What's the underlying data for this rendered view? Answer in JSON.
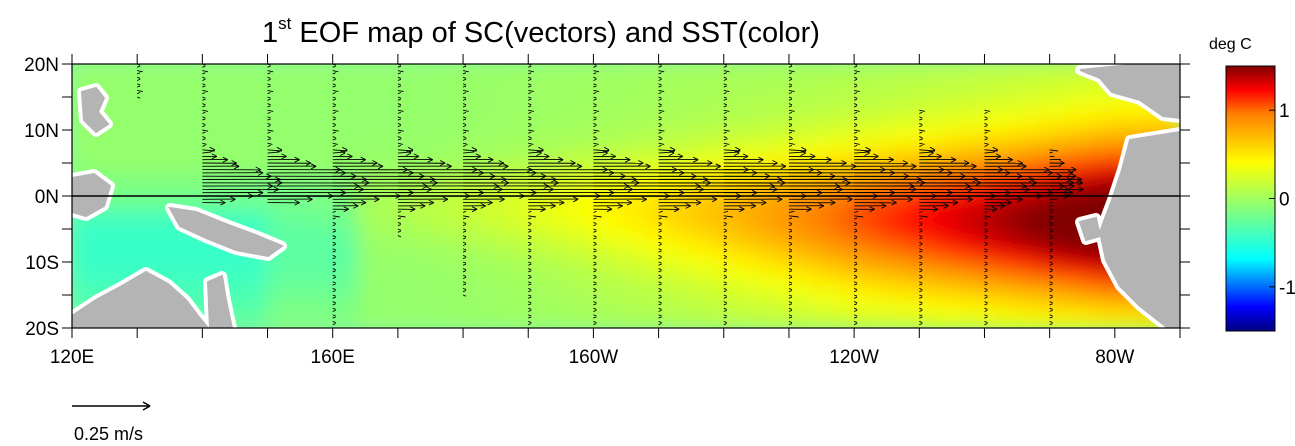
{
  "title": {
    "prefix": "1",
    "superscript": "st",
    "rest": " EOF map of SC(vectors) and SST(color)"
  },
  "colorbar_label": "deg C",
  "reference_vector_label": "0.25 m/s",
  "chart_data": {
    "type": "heatmap",
    "title": "1st EOF map of SC(vectors) and SST(color)",
    "xlabel": "",
    "ylabel": "",
    "xlim": [
      120,
      290
    ],
    "ylim": [
      -20,
      20
    ],
    "x_ticks": [
      {
        "value": 120,
        "label": "120E"
      },
      {
        "value": 160,
        "label": "160E"
      },
      {
        "value": 200,
        "label": "160W"
      },
      {
        "value": 240,
        "label": "120W"
      },
      {
        "value": 280,
        "label": "80W"
      }
    ],
    "y_ticks": [
      {
        "value": 20,
        "label": "20N"
      },
      {
        "value": 10,
        "label": "10N"
      },
      {
        "value": 0,
        "label": "0N"
      },
      {
        "value": -10,
        "label": "10S"
      },
      {
        "value": -20,
        "label": "20S"
      }
    ],
    "equator_line": 0,
    "colorbar": {
      "label": "deg C",
      "range": [
        -1.5,
        1.5
      ],
      "ticks": [
        {
          "value": 1,
          "label": "1"
        },
        {
          "value": 0,
          "label": "0"
        },
        {
          "value": -1,
          "label": "-1"
        }
      ],
      "colors": [
        "#000080",
        "#0000ff",
        "#0080ff",
        "#00ffff",
        "#40ffc0",
        "#80ff80",
        "#c0ff40",
        "#ffff00",
        "#ffc000",
        "#ff8000",
        "#ff0000",
        "#800000"
      ]
    },
    "sst_field": {
      "description_free": true,
      "max_value": 1.3,
      "min_value": -0.4
    },
    "vectors": {
      "reference": {
        "speed": 0.25,
        "unit": "m/s",
        "label": "0.25 m/s"
      },
      "columns": [
        {
          "lon": 130,
          "lat_range": [
            15,
            20
          ],
          "peak_u": 0.0
        },
        {
          "lon": 140,
          "lat_range": [
            -1,
            20
          ],
          "peak_u": 0.25
        },
        {
          "lon": 150,
          "lat_range": [
            -1,
            20
          ],
          "peak_u": 0.32
        },
        {
          "lon": 160,
          "lat_range": [
            -20,
            20
          ],
          "peak_u": 0.33
        },
        {
          "lon": 170,
          "lat_range": [
            -6,
            20
          ],
          "peak_u": 0.35
        },
        {
          "lon": 180,
          "lat_range": [
            -15,
            20
          ],
          "peak_u": 0.3
        },
        {
          "lon": 190,
          "lat_range": [
            -20,
            20
          ],
          "peak_u": 0.35
        },
        {
          "lon": 200,
          "lat_range": [
            -20,
            20
          ],
          "peak_u": 0.37
        },
        {
          "lon": 210,
          "lat_range": [
            -20,
            20
          ],
          "peak_u": 0.4
        },
        {
          "lon": 220,
          "lat_range": [
            -20,
            20
          ],
          "peak_u": 0.4
        },
        {
          "lon": 230,
          "lat_range": [
            -20,
            20
          ],
          "peak_u": 0.43
        },
        {
          "lon": 240,
          "lat_range": [
            -20,
            20
          ],
          "peak_u": 0.4
        },
        {
          "lon": 250,
          "lat_range": [
            -20,
            13
          ],
          "peak_u": 0.37
        },
        {
          "lon": 260,
          "lat_range": [
            -20,
            13
          ],
          "peak_u": 0.28
        },
        {
          "lon": 270,
          "lat_range": [
            -20,
            7
          ],
          "peak_u": 0.1
        }
      ]
    }
  }
}
